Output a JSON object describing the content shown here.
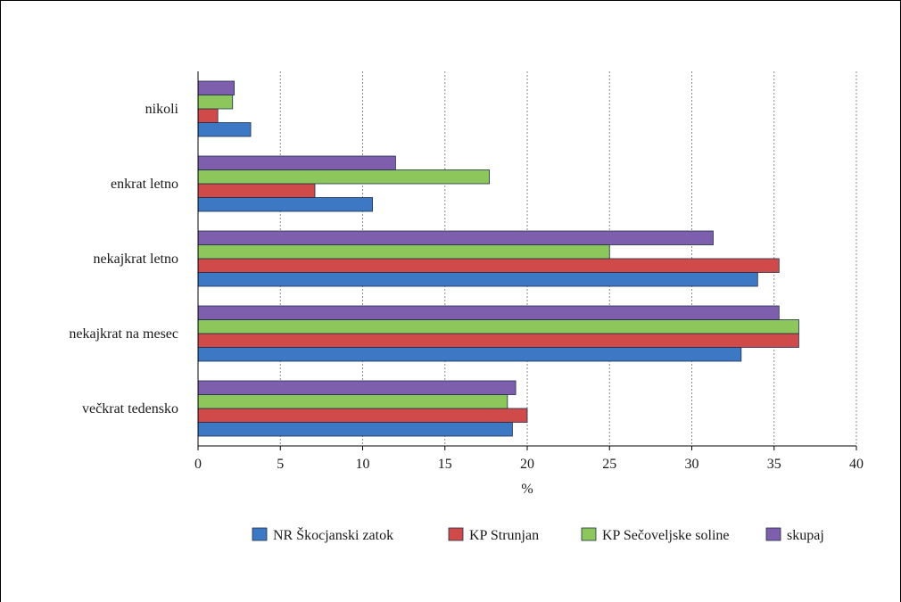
{
  "chart_data": {
    "type": "bar",
    "orientation": "horizontal",
    "title": "",
    "xlabel": "%",
    "ylabel": "",
    "xlim": [
      0,
      40
    ],
    "x_ticks": [
      0,
      5,
      10,
      15,
      20,
      25,
      30,
      35,
      40
    ],
    "grid": "vertical dashed",
    "legend_position": "bottom",
    "categories": [
      "nikoli",
      "enkrat letno",
      "nekajkrat letno",
      "nekajkrat na mesec",
      "večkrat tedensko"
    ],
    "series": [
      {
        "name": "NR Škocjanski zatok",
        "color": "#3c78c3",
        "values": [
          3.2,
          10.6,
          34.0,
          33.0,
          19.1
        ]
      },
      {
        "name": "KP Strunjan",
        "color": "#d04a4a",
        "values": [
          1.2,
          7.1,
          35.3,
          36.5,
          20.0
        ]
      },
      {
        "name": "KP Sečoveljske soline",
        "color": "#8dc65a",
        "values": [
          2.1,
          17.7,
          25.0,
          36.5,
          18.8
        ]
      },
      {
        "name": "skupaj",
        "color": "#7e5fad",
        "values": [
          2.2,
          12.0,
          31.3,
          35.3,
          19.3
        ]
      }
    ]
  }
}
